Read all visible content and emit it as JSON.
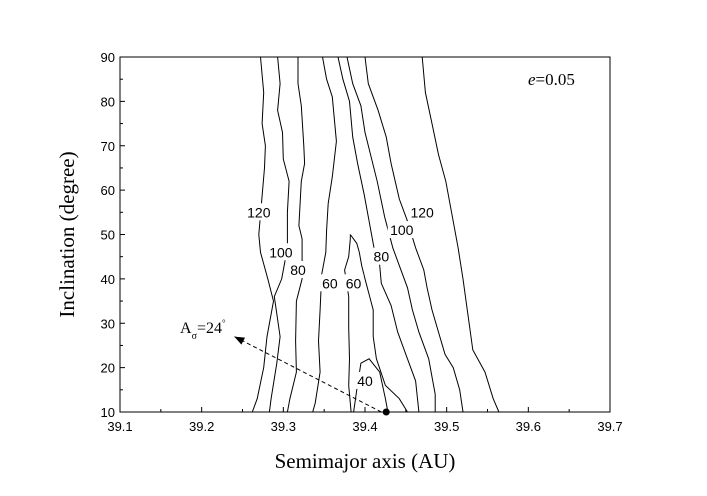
{
  "chart_data": {
    "type": "contour",
    "xlabel": "Semimajor axis (AU)",
    "ylabel": "Inclination (degree)",
    "xlim": [
      39.1,
      39.7
    ],
    "ylim": [
      10,
      90
    ],
    "xticks": [
      "39.1",
      "39.2",
      "39.3",
      "39.4",
      "39.5",
      "39.6",
      "39.7"
    ],
    "yticks": [
      "10",
      "20",
      "30",
      "40",
      "50",
      "60",
      "70",
      "80",
      "90"
    ],
    "grid": false,
    "parameter_label": {
      "var": "e",
      "rest": "=0.05"
    },
    "annotation": {
      "text_main": "A",
      "text_sub": "σ",
      "text_rest": "=24",
      "text_sup": "°",
      "arrow_from": [
        39.42,
        10
      ],
      "arrow_to": [
        39.24,
        27
      ]
    },
    "contours": [
      {
        "level": "120",
        "points": [
          [
            39.272,
            90
          ],
          [
            39.276,
            82
          ],
          [
            39.274,
            75
          ],
          [
            39.278,
            70
          ],
          [
            39.277,
            65
          ],
          [
            39.27,
            50
          ],
          [
            39.272,
            46
          ],
          [
            39.281,
            40
          ],
          [
            39.288,
            35
          ],
          [
            39.28,
            27
          ],
          [
            39.276,
            20
          ],
          [
            39.268,
            13
          ],
          [
            39.262,
            10
          ]
        ]
      },
      {
        "level": "100",
        "points": [
          [
            39.293,
            90
          ],
          [
            39.296,
            84
          ],
          [
            39.293,
            78
          ],
          [
            39.299,
            73
          ],
          [
            39.3,
            67
          ],
          [
            39.307,
            62
          ],
          [
            39.305,
            55
          ],
          [
            39.305,
            47
          ],
          [
            39.298,
            40
          ],
          [
            39.289,
            36
          ],
          [
            39.296,
            27
          ],
          [
            39.292,
            21
          ],
          [
            39.285,
            13
          ],
          [
            39.283,
            10
          ]
        ]
      },
      {
        "level": "80",
        "points": [
          [
            39.318,
            90
          ],
          [
            39.318,
            84
          ],
          [
            39.322,
            79
          ],
          [
            39.325,
            70
          ],
          [
            39.326,
            66
          ],
          [
            39.322,
            62
          ],
          [
            39.319,
            52
          ],
          [
            39.323,
            49
          ],
          [
            39.323,
            40
          ],
          [
            39.316,
            35
          ],
          [
            39.315,
            26
          ],
          [
            39.316,
            19
          ],
          [
            39.308,
            13
          ],
          [
            39.305,
            10
          ]
        ]
      },
      {
        "level": "60",
        "points": [
          [
            39.348,
            90
          ],
          [
            39.353,
            85
          ],
          [
            39.36,
            81
          ],
          [
            39.365,
            71
          ],
          [
            39.36,
            63
          ],
          [
            39.355,
            57
          ],
          [
            39.353,
            51
          ],
          [
            39.352,
            46
          ],
          [
            39.347,
            41
          ],
          [
            39.345,
            33
          ],
          [
            39.343,
            26
          ],
          [
            39.345,
            19
          ],
          [
            39.339,
            12
          ],
          [
            39.336,
            10
          ]
        ]
      },
      {
        "level": "60",
        "points": [
          [
            39.382,
            50
          ],
          [
            39.382,
            49
          ],
          [
            39.381,
            47
          ],
          [
            39.38,
            45
          ],
          [
            39.375,
            42
          ],
          [
            39.38,
            36
          ],
          [
            39.38,
            29
          ],
          [
            39.381,
            22
          ],
          [
            39.38,
            16
          ],
          [
            39.383,
            10
          ]
        ]
      },
      {
        "level": "60",
        "points": [
          [
            39.382,
            50
          ],
          [
            39.39,
            48
          ],
          [
            39.393,
            46
          ],
          [
            39.396,
            43
          ],
          [
            39.4,
            40
          ],
          [
            39.41,
            33
          ],
          [
            39.41,
            27
          ],
          [
            39.414,
            22
          ],
          [
            39.425,
            16
          ],
          [
            39.442,
            13
          ],
          [
            39.452,
            10
          ]
        ]
      },
      {
        "level": "80",
        "points": [
          [
            39.367,
            90
          ],
          [
            39.373,
            85
          ],
          [
            39.381,
            80
          ],
          [
            39.385,
            72
          ],
          [
            39.391,
            66
          ],
          [
            39.399,
            59
          ],
          [
            39.405,
            53
          ],
          [
            39.411,
            47
          ],
          [
            39.417,
            45
          ],
          [
            39.42,
            39
          ],
          [
            39.432,
            34
          ],
          [
            39.44,
            28
          ],
          [
            39.45,
            23
          ],
          [
            39.462,
            17
          ],
          [
            39.466,
            10
          ]
        ]
      },
      {
        "level": "100",
        "points": [
          [
            39.378,
            90
          ],
          [
            39.385,
            84
          ],
          [
            39.395,
            79
          ],
          [
            39.4,
            73
          ],
          [
            39.415,
            62
          ],
          [
            39.424,
            54
          ],
          [
            39.434,
            47
          ],
          [
            39.442,
            43
          ],
          [
            39.452,
            38
          ],
          [
            39.458,
            33
          ],
          [
            39.466,
            28
          ],
          [
            39.478,
            22
          ],
          [
            39.486,
            14
          ],
          [
            39.486,
            10
          ]
        ]
      },
      {
        "level": "120",
        "points": [
          [
            39.4,
            90
          ],
          [
            39.404,
            84
          ],
          [
            39.416,
            78
          ],
          [
            39.426,
            72
          ],
          [
            39.432,
            66
          ],
          [
            39.442,
            58
          ],
          [
            39.452,
            53
          ],
          [
            39.462,
            47
          ],
          [
            39.472,
            42
          ],
          [
            39.476,
            38
          ],
          [
            39.482,
            33
          ],
          [
            39.49,
            28
          ],
          [
            39.498,
            23
          ],
          [
            39.508,
            20
          ],
          [
            39.516,
            15
          ],
          [
            39.52,
            10
          ]
        ]
      },
      {
        "level": "",
        "points": [
          [
            39.47,
            90
          ],
          [
            39.474,
            82
          ],
          [
            39.482,
            75
          ],
          [
            39.49,
            68
          ],
          [
            39.499,
            62
          ],
          [
            39.508,
            53
          ],
          [
            39.514,
            47
          ],
          [
            39.52,
            40
          ],
          [
            39.526,
            32
          ],
          [
            39.532,
            24
          ],
          [
            39.547,
            19
          ],
          [
            39.557,
            13
          ],
          [
            39.564,
            10
          ]
        ]
      },
      {
        "level": "40",
        "points": [
          [
            39.386,
            10
          ],
          [
            39.39,
            15
          ],
          [
            39.395,
            21
          ],
          [
            39.405,
            22
          ],
          [
            39.418,
            19
          ],
          [
            39.425,
            13
          ],
          [
            39.428,
            10
          ]
        ]
      }
    ],
    "contour_labels": [
      {
        "text": "120",
        "x": 39.27,
        "y": 55
      },
      {
        "text": "100",
        "x": 39.297,
        "y": 46
      },
      {
        "text": "80",
        "x": 39.318,
        "y": 42
      },
      {
        "text": "60",
        "x": 39.357,
        "y": 39
      },
      {
        "text": "60",
        "x": 39.386,
        "y": 39
      },
      {
        "text": "80",
        "x": 39.42,
        "y": 45
      },
      {
        "text": "100",
        "x": 39.445,
        "y": 51
      },
      {
        "text": "120",
        "x": 39.47,
        "y": 55
      },
      {
        "text": "40",
        "x": 39.4,
        "y": 17
      }
    ],
    "marker": {
      "x": 39.426,
      "y": 10
    }
  }
}
